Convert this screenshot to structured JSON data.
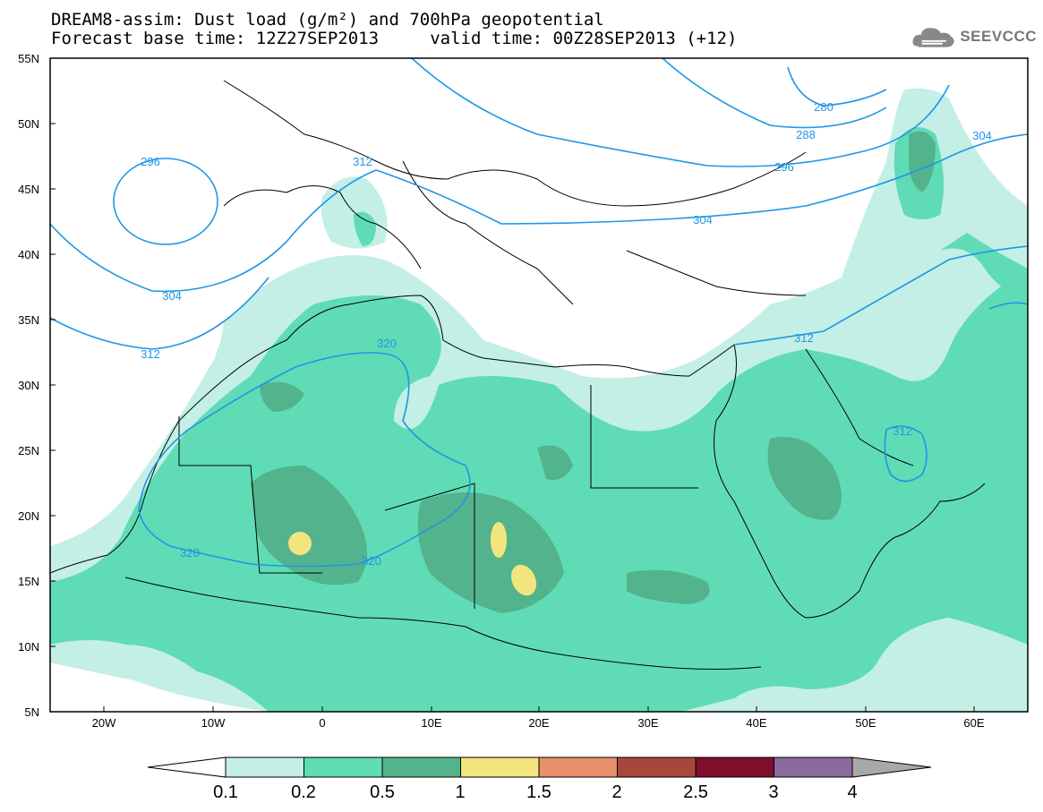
{
  "header": {
    "line1": "DREAM8-assim: Dust load (g/m²) and 700hPa geopotential",
    "line2": "Forecast base time: 12Z27SEP2013     valid time: 00Z28SEP2013 (+12)"
  },
  "logo": {
    "text": "SEEVCCC",
    "icon": "cloud-icon"
  },
  "axes": {
    "lat_labels": [
      "55N",
      "50N",
      "45N",
      "40N",
      "35N",
      "30N",
      "25N",
      "20N",
      "15N",
      "10N",
      "5N"
    ],
    "lon_labels": [
      "20W",
      "10W",
      "0",
      "10E",
      "20E",
      "30E",
      "40E",
      "50E",
      "60E"
    ]
  },
  "contours": {
    "labels": [
      "296",
      "312",
      "280",
      "288",
      "296",
      "304",
      "304",
      "304",
      "320",
      "312",
      "312",
      "320",
      "320",
      "312"
    ]
  },
  "colorbar": {
    "levels": [
      "0.1",
      "0.2",
      "0.5",
      "1",
      "1.5",
      "2",
      "2.5",
      "3",
      "4"
    ],
    "colors": [
      "#c3efe6",
      "#5fdcb5",
      "#53b38c",
      "#f3e57e",
      "#e8906b",
      "#a8463c",
      "#7f0d2b",
      "#8b6a9e",
      "#a8a8a8"
    ]
  },
  "colors": {
    "contour": "#1e96e6",
    "dust_light": "#c3efe6",
    "dust_mid": "#5fdcb5",
    "dust_dark": "#53b38c",
    "dust_yellow": "#f3e57e"
  }
}
